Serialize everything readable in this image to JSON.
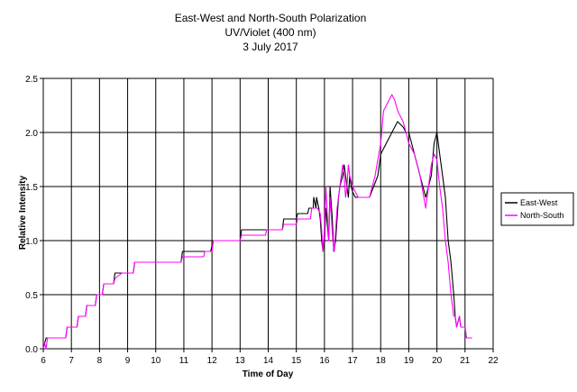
{
  "chart_data": {
    "type": "line",
    "title": [
      "East-West and North-South Polarization",
      "UV/Violet (400 nm)",
      "3 July 2017"
    ],
    "xlabel": "Time of Day",
    "ylabel": "Relative Intensity",
    "xlim": [
      6,
      22
    ],
    "ylim": [
      0,
      2.5
    ],
    "xticks": [
      "6",
      "7",
      "8",
      "9",
      "10",
      "11",
      "12",
      "13",
      "14",
      "15",
      "16",
      "17",
      "18",
      "19",
      "20",
      "21",
      "22"
    ],
    "yticks": [
      "0.0",
      "0.5",
      "1.0",
      "1.5",
      "2.0",
      "2.5"
    ],
    "grid": "major",
    "legend_position": "right",
    "series": [
      {
        "name": "East-West",
        "color": "#000000",
        "x": [
          6.0,
          6.1,
          6.15,
          6.2,
          6.8,
          6.85,
          7.2,
          7.25,
          7.5,
          7.55,
          7.85,
          7.9,
          8.1,
          8.15,
          8.5,
          8.55,
          8.8,
          8.85,
          9.2,
          9.25,
          10.9,
          10.95,
          11.7,
          11.75,
          11.95,
          12.0,
          12.0,
          13.0,
          13.05,
          13.9,
          13.95,
          14.5,
          14.55,
          15.0,
          15.05,
          15.4,
          15.45,
          15.6,
          15.62,
          15.7,
          15.72,
          15.8,
          15.85,
          15.9,
          15.95,
          16.0,
          16.05,
          16.15,
          16.2,
          16.28,
          16.33,
          16.4,
          16.5,
          16.55,
          16.65,
          16.7,
          16.75,
          16.8,
          16.85,
          16.9,
          16.95,
          17.0,
          17.1,
          17.2,
          17.3,
          17.4,
          17.6,
          17.9,
          18.0,
          18.2,
          18.4,
          18.5,
          18.6,
          18.8,
          18.9,
          19.0,
          19.2,
          19.4,
          19.6,
          19.8,
          19.9,
          20.0,
          20.1,
          20.2,
          20.3,
          20.4,
          20.5,
          20.6,
          20.65,
          20.7,
          20.8,
          20.85,
          21.0,
          21.05,
          21.2,
          21.25
        ],
        "y": [
          0.0,
          0.1,
          0.1,
          0.1,
          0.1,
          0.2,
          0.2,
          0.3,
          0.3,
          0.4,
          0.4,
          0.5,
          0.5,
          0.6,
          0.6,
          0.7,
          0.7,
          0.7,
          0.7,
          0.8,
          0.8,
          0.9,
          0.9,
          0.9,
          0.9,
          0.95,
          1.0,
          1.0,
          1.1,
          1.1,
          1.1,
          1.1,
          1.2,
          1.2,
          1.25,
          1.25,
          1.3,
          1.3,
          1.4,
          1.3,
          1.4,
          1.3,
          1.2,
          1.0,
          0.9,
          1.0,
          1.3,
          1.0,
          1.5,
          1.2,
          0.9,
          1.0,
          1.4,
          1.5,
          1.6,
          1.7,
          1.6,
          1.5,
          1.4,
          1.6,
          1.5,
          1.45,
          1.4,
          1.4,
          1.4,
          1.4,
          1.4,
          1.6,
          1.8,
          1.9,
          2.0,
          2.05,
          2.1,
          2.05,
          2.0,
          2.0,
          1.8,
          1.6,
          1.4,
          1.6,
          1.9,
          2.0,
          1.8,
          1.6,
          1.4,
          1.0,
          0.8,
          0.5,
          0.3,
          0.2,
          0.3,
          0.2,
          0.2,
          0.1,
          0.1,
          0.1
        ]
      },
      {
        "name": "North-South",
        "color": "#ff00ff",
        "x": [
          6.0,
          6.05,
          6.1,
          6.15,
          6.2,
          6.8,
          6.85,
          7.2,
          7.25,
          7.5,
          7.55,
          7.85,
          7.9,
          8.1,
          8.15,
          8.5,
          8.55,
          8.8,
          9.2,
          9.25,
          10.9,
          10.95,
          11.7,
          11.75,
          12.0,
          12.05,
          13.0,
          13.05,
          13.9,
          13.95,
          14.5,
          14.55,
          15.0,
          15.05,
          15.5,
          15.55,
          15.7,
          15.75,
          15.85,
          15.9,
          15.95,
          16.0,
          16.05,
          16.15,
          16.2,
          16.3,
          16.35,
          16.45,
          16.55,
          16.65,
          16.7,
          16.75,
          16.8,
          16.85,
          16.9,
          17.0,
          17.1,
          17.2,
          17.3,
          17.6,
          17.8,
          18.0,
          18.1,
          18.3,
          18.4,
          18.5,
          18.6,
          18.7,
          18.8,
          18.9,
          19.0,
          19.2,
          19.4,
          19.6,
          19.7,
          19.8,
          19.9,
          20.0,
          20.1,
          20.2,
          20.3,
          20.4,
          20.5,
          20.55,
          20.6,
          20.65,
          20.7,
          20.8,
          20.85,
          21.0,
          21.05,
          21.2,
          21.25
        ],
        "y": [
          0.0,
          0.05,
          0.0,
          0.1,
          0.1,
          0.1,
          0.2,
          0.2,
          0.3,
          0.3,
          0.4,
          0.4,
          0.5,
          0.5,
          0.6,
          0.6,
          0.65,
          0.7,
          0.7,
          0.8,
          0.8,
          0.85,
          0.85,
          0.9,
          0.9,
          1.0,
          1.0,
          1.05,
          1.05,
          1.1,
          1.1,
          1.15,
          1.15,
          1.2,
          1.2,
          1.3,
          1.3,
          1.3,
          1.25,
          1.1,
          0.9,
          1.1,
          1.5,
          1.0,
          1.4,
          1.0,
          0.9,
          1.3,
          1.5,
          1.7,
          1.6,
          1.4,
          1.5,
          1.7,
          1.6,
          1.5,
          1.45,
          1.4,
          1.4,
          1.4,
          1.6,
          1.9,
          2.2,
          2.3,
          2.35,
          2.3,
          2.2,
          2.15,
          2.1,
          2.0,
          1.9,
          1.8,
          1.6,
          1.3,
          1.5,
          1.7,
          1.8,
          1.75,
          1.5,
          1.3,
          1.0,
          0.8,
          0.5,
          0.4,
          0.3,
          0.3,
          0.2,
          0.3,
          0.2,
          0.2,
          0.1,
          0.1,
          0.1
        ]
      }
    ]
  }
}
